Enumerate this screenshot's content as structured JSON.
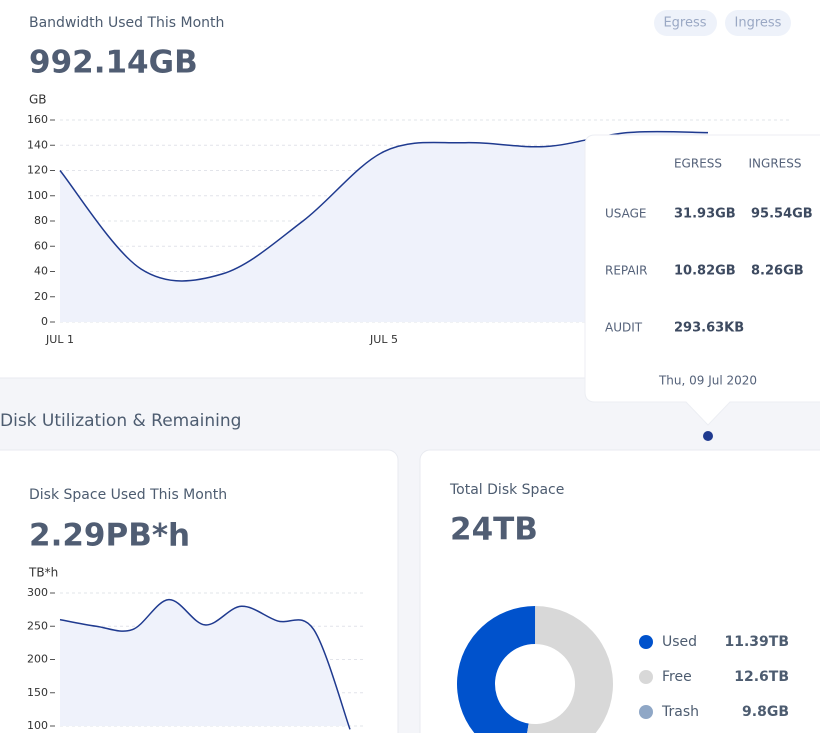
{
  "bandwidth": {
    "title": "Bandwidth Used This Month",
    "total": "992.14GB",
    "toggles": [
      "Egress",
      "Ingress"
    ],
    "chart": {
      "type": "line",
      "y_label": "GB",
      "categories": [
        "JUL 1",
        null,
        null,
        null,
        "JUL 5",
        null,
        null,
        null,
        null
      ],
      "values": [
        120,
        42,
        38,
        80,
        135,
        142,
        139,
        150,
        150
      ],
      "color": "#1f3a8f",
      "ylim": [
        0,
        160
      ],
      "yticks": [
        0,
        20,
        40,
        60,
        80,
        100,
        120,
        140,
        160
      ],
      "grid": true
    },
    "tooltip": {
      "columns": [
        "EGRESS",
        "INGRESS"
      ],
      "rows": [
        {
          "label": "USAGE",
          "values": [
            "31.93GB",
            "95.54GB"
          ]
        },
        {
          "label": "REPAIR",
          "values": [
            "10.82GB",
            "8.26GB"
          ]
        },
        {
          "label": "AUDIT",
          "values": [
            "293.63KB"
          ]
        }
      ],
      "date": "Thu, 09 Jul 2020"
    }
  },
  "section_title": "Disk Utilization & Remaining",
  "disk_used": {
    "title": "Disk Space Used This Month",
    "total": "2.29PB*h",
    "chart": {
      "type": "line",
      "y_label": "TB*h",
      "values": [
        260,
        250,
        245,
        290,
        252,
        280,
        258,
        245,
        95
      ],
      "color": "#1f3a8f",
      "ylim": [
        100,
        300
      ],
      "yticks": [
        100,
        150,
        200,
        250,
        300
      ],
      "grid": true
    }
  },
  "total_disk": {
    "title": "Total Disk Space",
    "total": "24TB",
    "chart": {
      "type": "pie",
      "categories": [
        "Used",
        "Free",
        "Trash"
      ],
      "values": [
        11.39,
        12.6,
        0.0098
      ],
      "value_labels": [
        "11.39TB",
        "12.6TB",
        "9.8GB"
      ],
      "colors": [
        "#0052cc",
        "#d8d8d8",
        "#8fa7c6"
      ]
    }
  }
}
